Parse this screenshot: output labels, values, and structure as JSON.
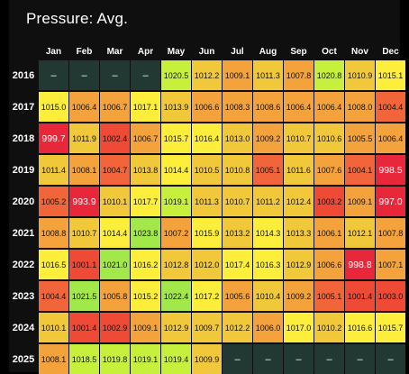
{
  "title": "Pressure: Avg.",
  "months": [
    "Jan",
    "Feb",
    "Mar",
    "Apr",
    "May",
    "Jun",
    "Jul",
    "Aug",
    "Sep",
    "Oct",
    "Nov",
    "Dec"
  ],
  "years": [
    "2016",
    "2017",
    "2018",
    "2019",
    "2020",
    "2021",
    "2022",
    "2023",
    "2024",
    "2025"
  ],
  "missing_label": "–",
  "colors": {
    "missing": "#213833",
    "scale": [
      "#e8283a",
      "#ee4a36",
      "#f2653a",
      "#f4a23c",
      "#f0c83a",
      "#fcee3a",
      "#c7f03c",
      "#a3e84a"
    ]
  },
  "cells": [
    [
      "–",
      "–",
      "–",
      "–",
      "1020.5",
      "1012.2",
      "1009.1",
      "1011.3",
      "1007.8",
      "1020.8",
      "1010.9",
      "1015.1"
    ],
    [
      "1015.0",
      "1006.4",
      "1006.7",
      "1017.1",
      "1013.9",
      "1006.6",
      "1008.3",
      "1008.6",
      "1006.4",
      "1006.4",
      "1008.0",
      "1004.4"
    ],
    [
      "999.7",
      "1011.9",
      "1002.4",
      "1006.7",
      "1015.7",
      "1016.4",
      "1013.0",
      "1009.2",
      "1010.7",
      "1010.6",
      "1005.5",
      "1006.4"
    ],
    [
      "1011.4",
      "1008.1",
      "1004.7",
      "1013.8",
      "1014.4",
      "1010.5",
      "1010.8",
      "1005.1",
      "1011.6",
      "1007.6",
      "1004.1",
      "998.5"
    ],
    [
      "1005.2",
      "993.9",
      "1010.1",
      "1017.7",
      "1019.1",
      "1011.3",
      "1010.7",
      "1011.2",
      "1012.4",
      "1003.2",
      "1009.1",
      "997.0"
    ],
    [
      "1008.8",
      "1010.7",
      "1014.4",
      "1023.8",
      "1007.2",
      "1015.9",
      "1013.2",
      "1014.3",
      "1013.3",
      "1006.1",
      "1012.1",
      "1007.8"
    ],
    [
      "1016.5",
      "1001.1",
      "1021.0",
      "1016.2",
      "1012.8",
      "1012.0",
      "1017.4",
      "1016.3",
      "1012.9",
      "1006.6",
      "998.8",
      "1007.1"
    ],
    [
      "1004.4",
      "1021.5",
      "1005.8",
      "1015.2",
      "1022.4",
      "1017.2",
      "1005.6",
      "1010.4",
      "1009.2",
      "1005.1",
      "1001.4",
      "1003.0"
    ],
    [
      "1010.1",
      "1001.4",
      "1002.9",
      "1009.1",
      "1012.9",
      "1009.7",
      "1012.2",
      "1006.0",
      "1017.0",
      "1010.2",
      "1016.6",
      "1015.7"
    ],
    [
      "1008.1",
      "1018.5",
      "1019.8",
      "1019.1",
      "1019.4",
      "1009.9",
      "–",
      "–",
      "–",
      "–",
      "–",
      "–"
    ]
  ]
}
